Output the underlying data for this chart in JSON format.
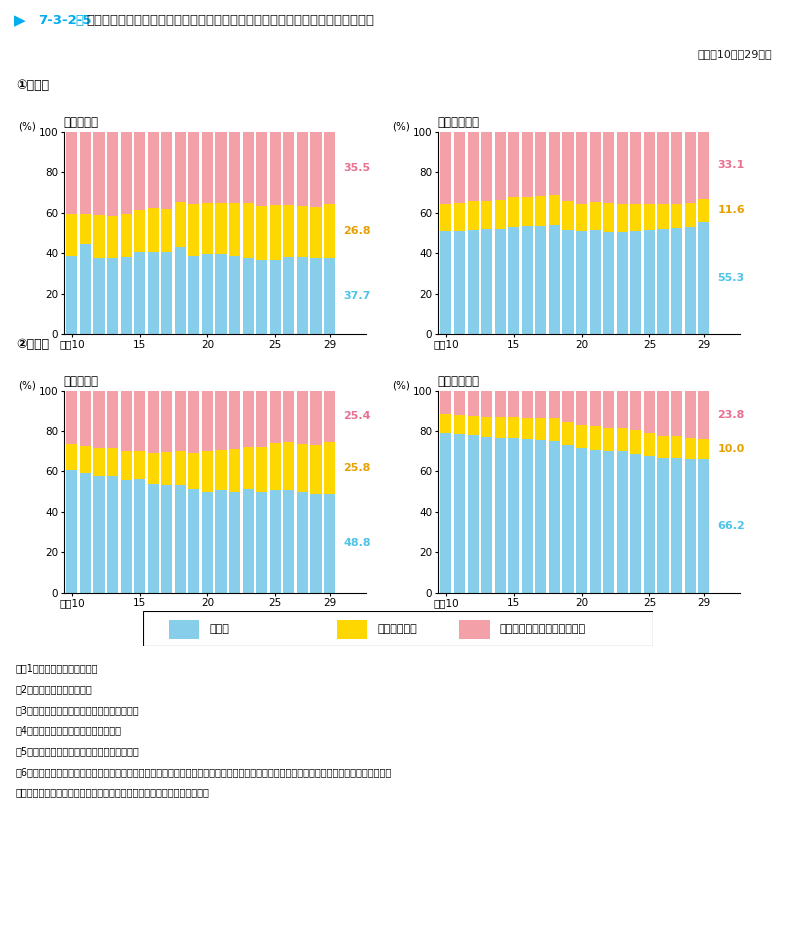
{
  "title_prefix": "7-3-2-5",
  "title_suffix": "図　起訴人員中の初犯者・有前科者人員の構成比の推移（総数・女性別，年齢層別）",
  "subtitle": "（平成10年～29年）",
  "panels": [
    {
      "row_label": "①　総数",
      "sub_a": "ア　高齢者",
      "sub_b": "イ　非高齢者",
      "data_a": {
        "blue": [
          38.5,
          44.5,
          37.5,
          37.5,
          38.0,
          40.5,
          40.5,
          40.5,
          43.0,
          38.5,
          39.5,
          39.5,
          38.5,
          37.5,
          36.5,
          36.5,
          38.0,
          38.0,
          37.5,
          37.7
        ],
        "yellow": [
          21.0,
          15.0,
          21.5,
          21.0,
          21.5,
          21.0,
          22.0,
          21.5,
          22.5,
          26.0,
          25.5,
          25.5,
          26.5,
          27.5,
          27.0,
          27.5,
          26.0,
          25.5,
          25.5,
          26.8
        ],
        "pink": [
          40.5,
          40.5,
          41.0,
          41.5,
          40.5,
          38.5,
          37.5,
          38.0,
          34.5,
          35.5,
          35.0,
          35.0,
          35.0,
          35.0,
          36.5,
          36.0,
          36.0,
          36.5,
          37.0,
          35.5
        ]
      },
      "data_b": {
        "blue": [
          51.0,
          51.0,
          51.5,
          52.0,
          52.0,
          53.0,
          53.5,
          53.5,
          54.0,
          51.5,
          51.0,
          51.5,
          50.5,
          50.5,
          51.0,
          51.5,
          52.0,
          52.5,
          53.0,
          55.3
        ],
        "yellow": [
          13.5,
          14.0,
          14.5,
          14.0,
          14.5,
          14.5,
          14.0,
          14.5,
          14.5,
          14.5,
          13.5,
          14.0,
          14.5,
          14.0,
          13.5,
          13.0,
          12.5,
          12.0,
          12.0,
          11.6
        ],
        "pink": [
          35.5,
          35.0,
          34.0,
          34.0,
          33.5,
          32.5,
          32.5,
          32.0,
          31.5,
          34.0,
          35.5,
          34.5,
          35.0,
          35.5,
          35.5,
          35.5,
          35.5,
          35.5,
          35.0,
          33.1
        ]
      },
      "label_a": {
        "blue": "37.7",
        "yellow": "26.8",
        "pink": "35.5"
      },
      "label_b": {
        "blue": "55.3",
        "yellow": "11.6",
        "pink": "33.1"
      }
    },
    {
      "row_label": "②　女性",
      "sub_a": "ア　高齢者",
      "sub_b": "イ　非高齢者",
      "data_a": {
        "blue": [
          60.5,
          59.0,
          57.5,
          57.5,
          56.0,
          56.5,
          54.0,
          53.5,
          53.5,
          51.5,
          50.0,
          51.0,
          50.0,
          51.5,
          50.0,
          51.0,
          51.0,
          50.0,
          49.0,
          48.8
        ],
        "yellow": [
          13.0,
          13.5,
          14.0,
          14.0,
          14.0,
          13.5,
          15.0,
          16.0,
          16.5,
          17.5,
          20.0,
          19.5,
          21.0,
          20.5,
          22.0,
          23.0,
          23.5,
          23.5,
          24.0,
          25.8
        ],
        "pink": [
          26.5,
          27.5,
          28.5,
          28.5,
          30.0,
          30.0,
          31.0,
          30.5,
          30.0,
          31.0,
          30.0,
          29.5,
          29.0,
          28.0,
          28.0,
          26.0,
          25.5,
          26.5,
          27.0,
          25.4
        ]
      },
      "data_b": {
        "blue": [
          79.0,
          78.5,
          78.0,
          77.0,
          76.5,
          76.5,
          76.0,
          75.5,
          75.0,
          73.0,
          71.5,
          70.5,
          70.0,
          70.0,
          68.5,
          67.5,
          66.5,
          66.5,
          66.0,
          66.2
        ],
        "yellow": [
          9.5,
          9.5,
          9.5,
          10.0,
          10.5,
          10.5,
          10.5,
          11.0,
          11.5,
          11.5,
          11.5,
          12.0,
          11.5,
          11.5,
          12.0,
          11.5,
          11.0,
          11.0,
          10.5,
          10.0
        ],
        "pink": [
          11.5,
          12.0,
          12.5,
          13.0,
          13.0,
          13.0,
          13.5,
          13.5,
          13.5,
          15.5,
          17.0,
          17.5,
          18.5,
          18.5,
          19.5,
          21.0,
          22.5,
          22.5,
          23.5,
          23.8
        ]
      },
      "label_a": {
        "blue": "48.8",
        "yellow": "25.8",
        "pink": "25.4"
      },
      "label_b": {
        "blue": "66.2",
        "yellow": "10.0",
        "pink": "23.8"
      }
    }
  ],
  "colors": {
    "blue": "#87CEEB",
    "yellow": "#FFD700",
    "pink": "#F4A0A8",
    "blue_label": "#4DC3E8",
    "yellow_label": "#E8A000",
    "pink_label": "#E87090"
  },
  "legend": [
    "初犯者",
    "有罰金前科者",
    "有罰金前科者を除く有前科者"
  ],
  "notes": [
    "注　1　検察統計年報による。",
    "　2　犯行時の年齢による。",
    "　3　過失運転致死傑等及び道交違反を除く。",
    "　4　被疑者が法人である事件を除く。",
    "　5　前科の有無又は年齢が不詳の者を除く。",
    "　6　「初犯者」は，罰金以上の有罪の確定裁判を受けたことがない者，「有前科者」は，罰金以上の有罪の確定裁判を受けたことがある者，",
    "「有罰金前科者」は，有前科者のうち，罰金の前科のみがある者をいう。"
  ]
}
